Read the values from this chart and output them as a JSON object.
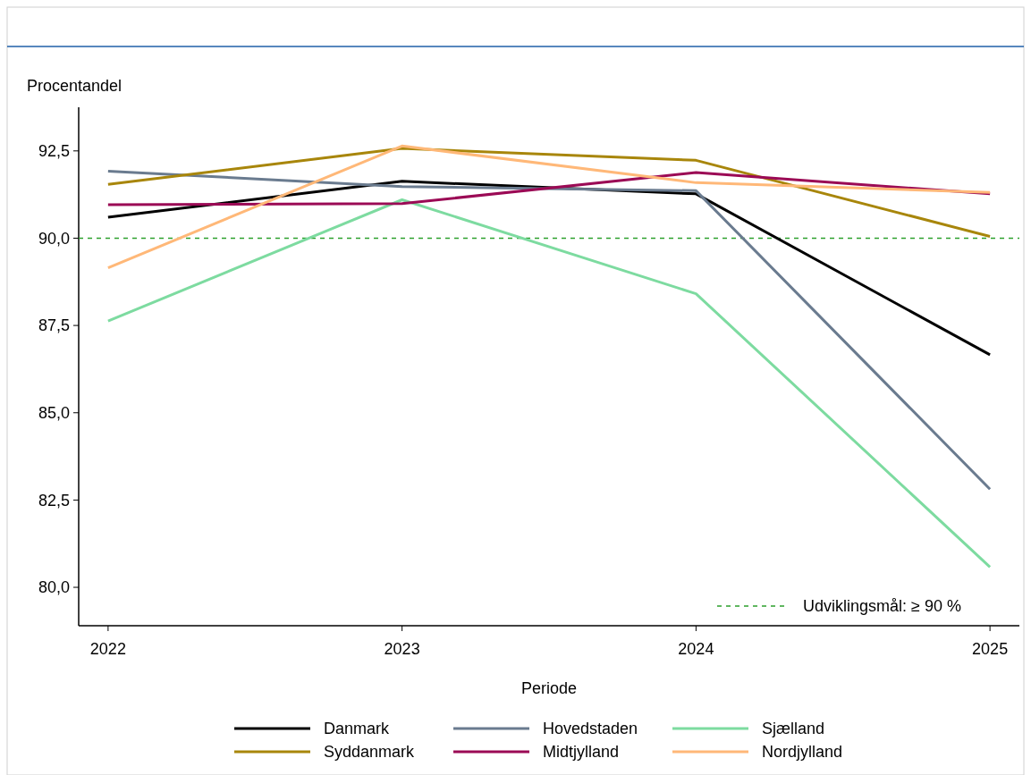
{
  "chart_data": {
    "type": "line",
    "ylabel": "Procentandel",
    "xlabel": "Periode",
    "x": [
      2022,
      2023,
      2024,
      2025
    ],
    "xlim": [
      2021.9,
      2025.1
    ],
    "xticks": [
      2022,
      2023,
      2024,
      2025
    ],
    "ylim": [
      78.9,
      93.75
    ],
    "yticks": [
      {
        "value": 80,
        "label": "80,0"
      },
      {
        "value": 82.5,
        "label": "82,5"
      },
      {
        "value": 85,
        "label": "85,0"
      },
      {
        "value": 87.5,
        "label": "87,5"
      },
      {
        "value": 90,
        "label": "90,0"
      },
      {
        "value": 92.5,
        "label": "92,5"
      }
    ],
    "grid": false,
    "legend": "bottom",
    "line_style": "solid",
    "marker": "none",
    "ref_lines": [
      {
        "axis": "y",
        "value": 90,
        "label": "Udviklingsmål: ≥ 90 %",
        "color": "#2ca02c",
        "line_style": "dashed"
      }
    ],
    "series": [
      {
        "name": "Danmark",
        "color": "#000000",
        "values": [
          90.6,
          91.63,
          91.27,
          86.66
        ]
      },
      {
        "name": "Hovedstaden",
        "color": "#6a7b8f",
        "values": [
          91.92,
          91.48,
          91.36,
          82.81
        ]
      },
      {
        "name": "Sjælland",
        "color": "#7ddba0",
        "values": [
          87.63,
          91.1,
          88.41,
          80.58
        ]
      },
      {
        "name": "Syddanmark",
        "color": "#a8860b",
        "values": [
          91.54,
          92.57,
          92.23,
          90.05
        ]
      },
      {
        "name": "Midtjylland",
        "color": "#9b0a55",
        "values": [
          90.96,
          90.99,
          91.88,
          91.27
        ]
      },
      {
        "name": "Nordjylland",
        "color": "#ffb878",
        "values": [
          89.15,
          92.64,
          91.59,
          91.31
        ]
      }
    ]
  }
}
